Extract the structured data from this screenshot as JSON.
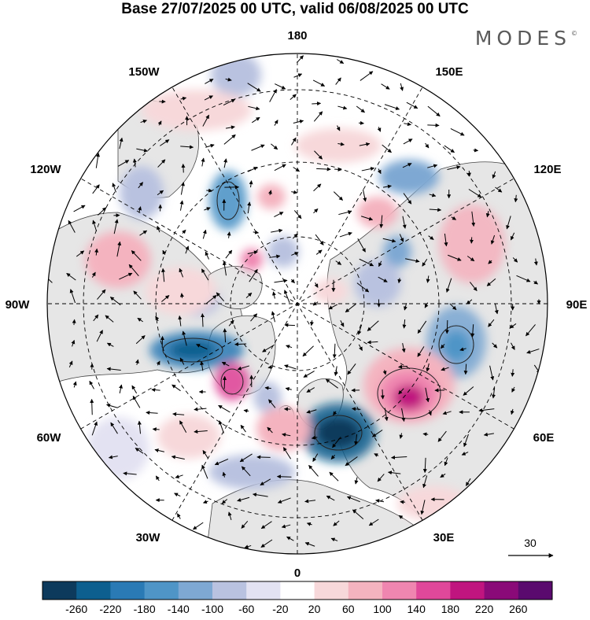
{
  "title": "Base 27/07/2025 00 UTC, valid 06/08/2025 00 UTC",
  "logo": {
    "text": "MODES",
    "mark": "©"
  },
  "map": {
    "projection": "north-polar-stereographic",
    "longitude_labels": {
      "top": "180",
      "top_left": "150W",
      "top_right": "150E",
      "upper_left": "120W",
      "upper_right": "120E",
      "left": "90W",
      "right": "90E",
      "lower_left": "60W",
      "lower_right": "60E",
      "bottom_left": "30W",
      "bottom_right": "30E",
      "bottom": "0"
    },
    "reference_vector": {
      "label": "30",
      "icon": "arrow-right-icon"
    }
  },
  "colorbar": {
    "ticks": [
      "-260",
      "-220",
      "-180",
      "-140",
      "-100",
      "-60",
      "-20",
      "20",
      "60",
      "100",
      "140",
      "180",
      "220",
      "260"
    ],
    "colors": [
      "#0d3a5c",
      "#0d5f8f",
      "#2a7ab5",
      "#4f95c7",
      "#7ea8d3",
      "#b9c2e0",
      "#e3e2f2",
      "#ffffff",
      "#f7d8da",
      "#f4b3bf",
      "#ef86b0",
      "#e0489a",
      "#c0157f",
      "#8a0a78",
      "#5a0a6e"
    ]
  }
}
